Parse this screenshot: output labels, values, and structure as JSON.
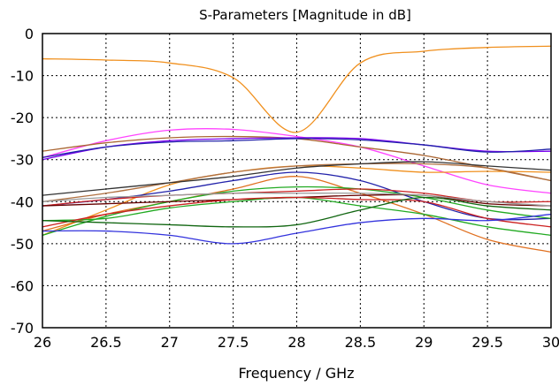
{
  "chart_data": {
    "type": "line",
    "title": "S-Parameters [Magnitude in dB]",
    "xlabel": "Frequency / GHz",
    "ylabel": "",
    "xlim": [
      26,
      30
    ],
    "ylim": [
      -70,
      0
    ],
    "x_ticks": [
      26,
      26.5,
      27,
      27.5,
      28,
      28.5,
      29,
      29.5,
      30
    ],
    "x_tick_labels": [
      "26",
      "26.5",
      "27",
      "27.5",
      "28",
      "28.5",
      "29",
      "29.5",
      "30"
    ],
    "y_ticks": [
      0,
      -10,
      -20,
      -30,
      -40,
      -50,
      -60,
      -70
    ],
    "y_tick_labels": [
      "0",
      "-10",
      "-20",
      "-30",
      "-40",
      "-50",
      "-60",
      "-70"
    ],
    "grid": true,
    "grid_style": "dotted",
    "legend": "none",
    "x": [
      26,
      26.5,
      27,
      27.5,
      28,
      28.5,
      29,
      29.5,
      30
    ],
    "series": [
      {
        "color": "#f0901e",
        "values": [
          -6,
          -6.3,
          -7,
          -10.5,
          -23.5,
          -7,
          -4.2,
          -3.3,
          -3
        ]
      },
      {
        "color": "#ff44ff",
        "values": [
          -29.5,
          -25.5,
          -23,
          -22.8,
          -24.5,
          -27,
          -31.5,
          -36,
          -38
        ]
      },
      {
        "color": "#aa6633",
        "values": [
          -28,
          -26,
          -24.8,
          -24.5,
          -25,
          -27,
          -29,
          -32,
          -35
        ]
      },
      {
        "color": "#7a00ee",
        "values": [
          -30,
          -27,
          -25.5,
          -25,
          -24.8,
          -25,
          -26.5,
          -28,
          -28
        ]
      },
      {
        "color": "#2222aa",
        "values": [
          -29.5,
          -27,
          -25.8,
          -25.5,
          -25,
          -25.3,
          -26.5,
          -28.2,
          -27.5
        ]
      },
      {
        "color": "#f0901e",
        "values": [
          -48,
          -42,
          -36,
          -33,
          -31.5,
          -32,
          -33,
          -32.8,
          -33
        ]
      },
      {
        "color": "#b07040",
        "values": [
          -40,
          -38,
          -35.5,
          -33,
          -31.5,
          -31,
          -31,
          -32,
          -35
        ]
      },
      {
        "color": "#333333",
        "values": [
          -38.5,
          -37,
          -35.5,
          -34,
          -32,
          -31,
          -30.5,
          -31.5,
          -32.5
        ]
      },
      {
        "color": "#2222aa",
        "values": [
          -41,
          -39.5,
          -37.5,
          -35,
          -33,
          -35,
          -40,
          -44,
          -44
        ]
      },
      {
        "color": "#e07020",
        "values": [
          -47,
          -43,
          -40,
          -37,
          -34,
          -38,
          -43,
          -49,
          -52
        ]
      },
      {
        "color": "#22aa22",
        "values": [
          -48,
          -43.5,
          -40,
          -37.5,
          -36.5,
          -37,
          -39,
          -42,
          -44
        ]
      },
      {
        "color": "#cc2222",
        "values": [
          -41,
          -39.5,
          -38.5,
          -38,
          -37.5,
          -37,
          -38,
          -40,
          -40
        ]
      },
      {
        "color": "#660000",
        "values": [
          -41,
          -40.5,
          -40,
          -39.5,
          -39,
          -38.5,
          -38.5,
          -40.5,
          -41
        ]
      },
      {
        "color": "#22aa22",
        "values": [
          -44.5,
          -44,
          -41.5,
          -40,
          -39,
          -41,
          -43,
          -46,
          -48
        ]
      },
      {
        "color": "#cc2222",
        "values": [
          -46,
          -43,
          -41,
          -39.5,
          -39,
          -39.5,
          -40,
          -44,
          -46
        ]
      },
      {
        "color": "#116611",
        "values": [
          -44.5,
          -45,
          -45.5,
          -46,
          -45.5,
          -42,
          -39,
          -41,
          -42
        ]
      },
      {
        "color": "#3333dd",
        "values": [
          -47,
          -47,
          -48,
          -50,
          -47.5,
          -45,
          -44,
          -44.5,
          -43
        ]
      },
      {
        "color": "#9a9a9a",
        "values": [
          -40,
          -39,
          -38.5,
          -38,
          -38,
          -38,
          -38.5,
          -40,
          -41
        ]
      }
    ]
  }
}
